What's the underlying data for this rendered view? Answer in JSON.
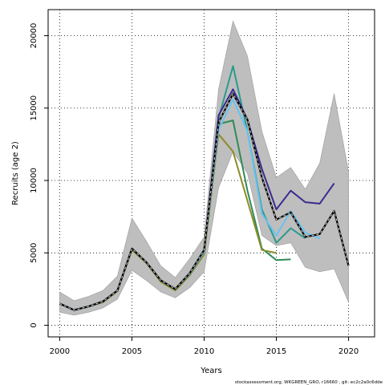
{
  "chart_data": {
    "type": "line",
    "xlabel": "Years",
    "ylabel": "Recruits (age 2)",
    "xlim": [
      1999.2,
      2021.8
    ],
    "ylim": [
      -800,
      21800
    ],
    "x_ticks": [
      2000,
      2005,
      2010,
      2015,
      2020
    ],
    "y_ticks": [
      0,
      5000,
      10000,
      15000,
      20000
    ],
    "grid": "dotted",
    "footer": "stockassessment.org, WKGREEN_GRO, r16660 , git: ec2c2a0c6dde",
    "colors": {
      "band": "#bebebe",
      "band_edge": "#9a9a9a",
      "current": "#000000",
      "current_overlay": "#d3d3d3"
    },
    "confidence_band": {
      "x": [
        2000,
        2001,
        2002,
        2003,
        2004,
        2005,
        2006,
        2007,
        2008,
        2009,
        2010,
        2011,
        2012,
        2013,
        2014,
        2015,
        2016,
        2017,
        2018,
        2019,
        2020
      ],
      "upper": [
        2300,
        1700,
        2000,
        2400,
        3400,
        7400,
        5800,
        4100,
        3300,
        4600,
        6100,
        16300,
        21000,
        18600,
        13400,
        10200,
        10900,
        9400,
        11200,
        16000,
        10600
      ],
      "lower": [
        900,
        700,
        900,
        1200,
        1800,
        3800,
        3100,
        2300,
        1900,
        2600,
        3700,
        9500,
        12000,
        10500,
        6200,
        5500,
        5700,
        4000,
        3700,
        3900,
        1600
      ]
    },
    "series": [
      {
        "color": "#2e8b57",
        "x": [
          2000,
          2001,
          2002,
          2003,
          2004,
          2005,
          2006,
          2007,
          2008,
          2009,
          2010,
          2011,
          2012,
          2013,
          2014,
          2015,
          2016
        ],
        "values": [
          1500,
          1050,
          1300,
          1600,
          2400,
          5250,
          4300,
          3050,
          2450,
          3500,
          4950,
          13900,
          14150,
          9300,
          5300,
          4500,
          4550
        ]
      },
      {
        "color": "#8b8b2a",
        "x": [
          2000,
          2001,
          2002,
          2003,
          2004,
          2005,
          2006,
          2007,
          2008,
          2009,
          2010,
          2011,
          2012,
          2013,
          2014,
          2015
        ],
        "values": [
          1500,
          1050,
          1300,
          1600,
          2350,
          5200,
          4300,
          3000,
          2400,
          3450,
          4900,
          13200,
          12000,
          8600,
          5200,
          5000
        ]
      },
      {
        "color": "#2b9a8c",
        "x": [
          2000,
          2001,
          2002,
          2003,
          2004,
          2005,
          2006,
          2007,
          2008,
          2009,
          2010,
          2011,
          2012,
          2013,
          2014,
          2015,
          2016,
          2017
        ],
        "values": [
          1500,
          1050,
          1300,
          1650,
          2400,
          5300,
          4350,
          3100,
          2500,
          3550,
          5100,
          14300,
          17900,
          13400,
          8000,
          5700,
          6700,
          6000
        ]
      },
      {
        "color": "#67c3f0",
        "x": [
          2000,
          2001,
          2002,
          2003,
          2004,
          2005,
          2006,
          2007,
          2008,
          2009,
          2010,
          2011,
          2012,
          2013,
          2014,
          2015,
          2016,
          2017,
          2018
        ],
        "values": [
          1500,
          1050,
          1300,
          1650,
          2400,
          5300,
          4350,
          3100,
          2500,
          3550,
          5100,
          13500,
          15600,
          13400,
          7700,
          6200,
          7900,
          6400,
          6000
        ]
      },
      {
        "color": "#3a2a8f",
        "x": [
          2000,
          2001,
          2002,
          2003,
          2004,
          2005,
          2006,
          2007,
          2008,
          2009,
          2010,
          2011,
          2012,
          2013,
          2014,
          2015,
          2016,
          2017,
          2018,
          2019
        ],
        "values": [
          1500,
          1050,
          1300,
          1650,
          2400,
          5300,
          4350,
          3100,
          2500,
          3600,
          5200,
          14500,
          16300,
          14200,
          10800,
          8000,
          9300,
          8500,
          8400,
          9800
        ]
      },
      {
        "color": "#000000",
        "current": true,
        "x": [
          2000,
          2001,
          2002,
          2003,
          2004,
          2005,
          2006,
          2007,
          2008,
          2009,
          2010,
          2011,
          2012,
          2013,
          2014,
          2015,
          2016,
          2017,
          2018,
          2019,
          2020
        ],
        "values": [
          1500,
          1050,
          1300,
          1650,
          2400,
          5300,
          4350,
          3100,
          2500,
          3600,
          5200,
          14000,
          16000,
          14200,
          10200,
          7300,
          7800,
          6100,
          6300,
          7900,
          4100
        ]
      }
    ]
  }
}
